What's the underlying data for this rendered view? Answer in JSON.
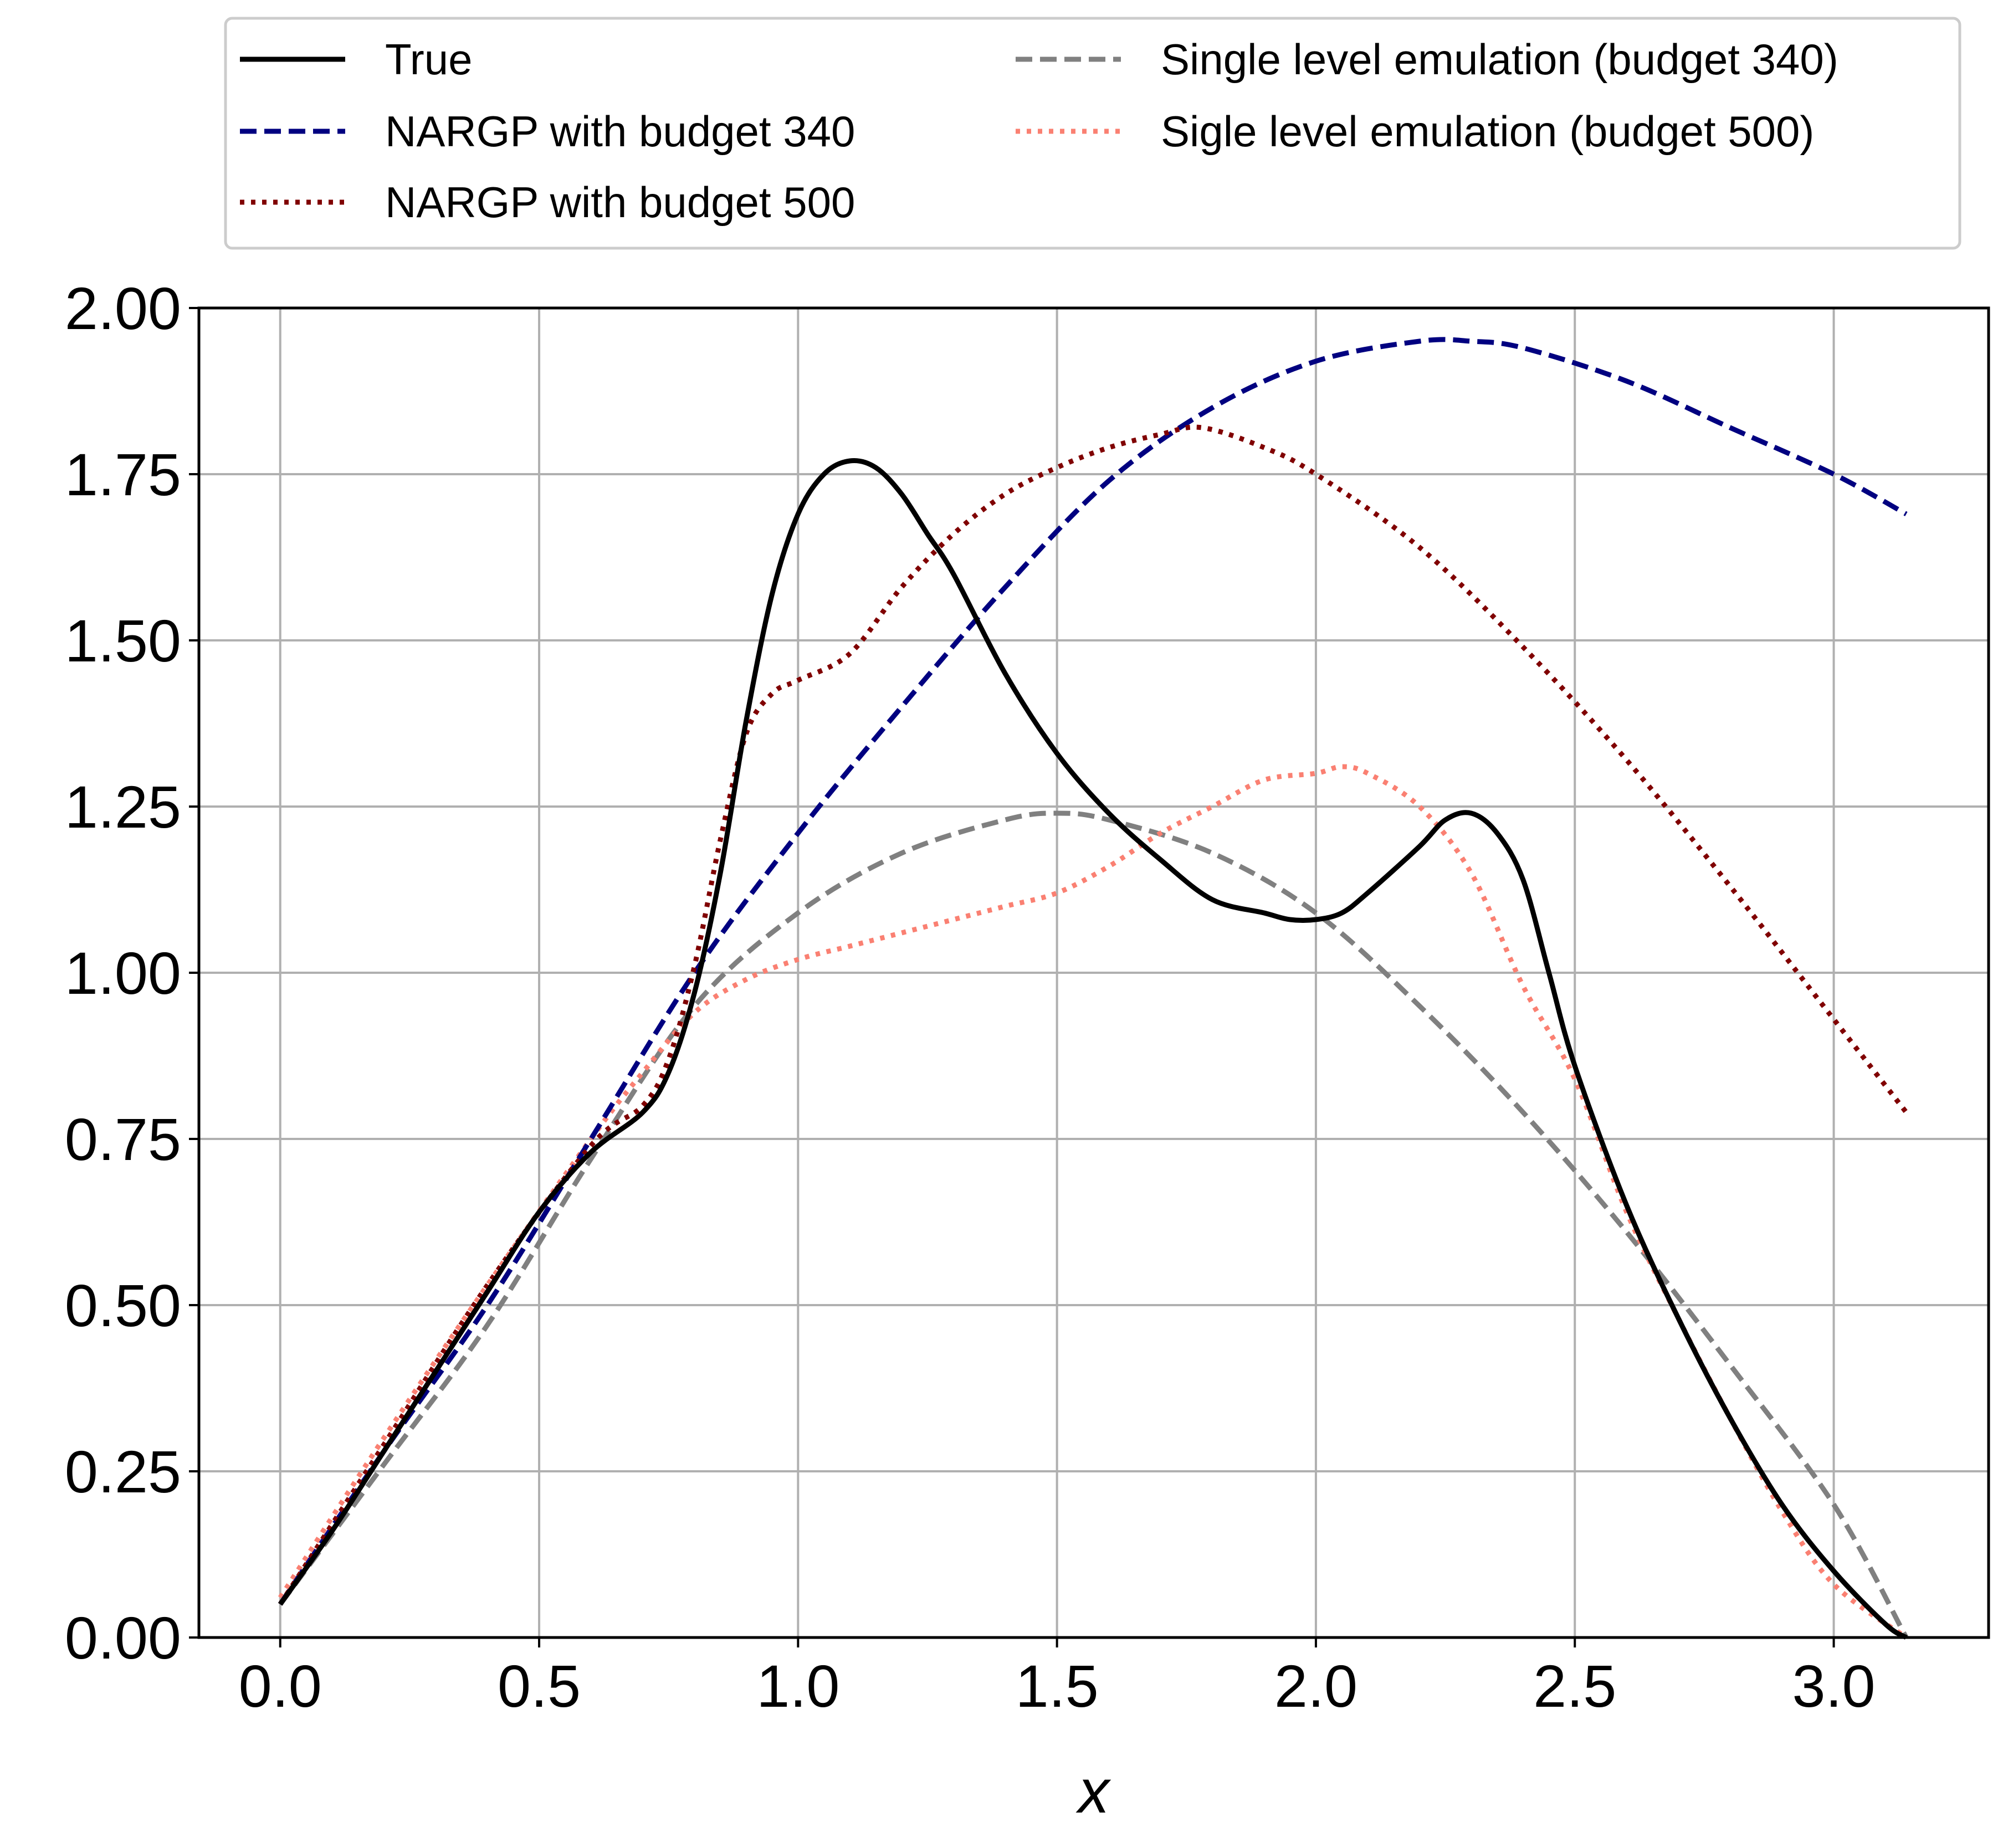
{
  "chart_data": {
    "type": "line",
    "title": "",
    "xlabel": "x",
    "ylabel": "",
    "xlim": [
      -0.157,
      3.299
    ],
    "ylim": [
      0,
      2
    ],
    "grid": true,
    "legend_position": "top (above plot), two columns",
    "xticks": [
      "0.0",
      "0.5",
      "1.0",
      "1.5",
      "2.0",
      "2.5",
      "3.0"
    ],
    "xtick_values": [
      0,
      0.5,
      1.0,
      1.5,
      2.0,
      2.5,
      3.0
    ],
    "yticks": [
      "0.00",
      "0.25",
      "0.50",
      "0.75",
      "1.00",
      "1.25",
      "1.50",
      "1.75",
      "2.00"
    ],
    "ytick_values": [
      0,
      0.25,
      0.5,
      0.75,
      1.0,
      1.25,
      1.5,
      1.75,
      2.0
    ],
    "series": [
      {
        "name": "True",
        "color": "#000000",
        "style": "solid",
        "x": [
          0,
          0.1,
          0.2,
          0.3,
          0.4,
          0.5,
          0.6,
          0.7,
          0.75,
          0.8,
          0.85,
          0.9,
          0.95,
          1.0,
          1.05,
          1.1,
          1.15,
          1.2,
          1.25,
          1.3,
          1.4,
          1.5,
          1.6,
          1.7,
          1.8,
          1.9,
          1.95,
          2.0,
          2.05,
          2.1,
          2.2,
          2.25,
          2.3,
          2.35,
          2.4,
          2.45,
          2.5,
          2.6,
          2.7,
          2.8,
          2.9,
          3.0,
          3.1,
          3.14
        ],
        "y": [
          0.05,
          0.16,
          0.28,
          0.4,
          0.52,
          0.64,
          0.73,
          0.79,
          0.85,
          0.97,
          1.15,
          1.38,
          1.57,
          1.69,
          1.75,
          1.77,
          1.76,
          1.72,
          1.66,
          1.6,
          1.45,
          1.33,
          1.24,
          1.17,
          1.11,
          1.09,
          1.08,
          1.08,
          1.09,
          1.12,
          1.19,
          1.23,
          1.24,
          1.21,
          1.14,
          1.0,
          0.86,
          0.65,
          0.48,
          0.33,
          0.2,
          0.1,
          0.02,
          0.0
        ]
      },
      {
        "name": "NARGP with budget 340",
        "color": "#000080",
        "style": "dashed",
        "x": [
          0,
          0.2,
          0.4,
          0.6,
          0.8,
          1.0,
          1.2,
          1.4,
          1.6,
          1.8,
          2.0,
          2.2,
          2.3,
          2.4,
          2.6,
          2.8,
          3.0,
          3.14
        ],
        "y": [
          0.05,
          0.28,
          0.5,
          0.75,
          1.0,
          1.21,
          1.4,
          1.58,
          1.74,
          1.85,
          1.92,
          1.95,
          1.95,
          1.94,
          1.89,
          1.82,
          1.75,
          1.69
        ]
      },
      {
        "name": "NARGP with budget 500",
        "color": "#800000",
        "style": "dotted",
        "x": [
          0,
          0.2,
          0.4,
          0.6,
          0.7,
          0.75,
          0.8,
          0.85,
          0.9,
          0.95,
          1.0,
          1.1,
          1.2,
          1.3,
          1.4,
          1.5,
          1.6,
          1.7,
          1.78,
          1.9,
          2.0,
          2.2,
          2.4,
          2.6,
          2.8,
          3.0,
          3.14
        ],
        "y": [
          0.05,
          0.29,
          0.53,
          0.74,
          0.8,
          0.87,
          1.01,
          1.2,
          1.36,
          1.42,
          1.44,
          1.48,
          1.58,
          1.66,
          1.72,
          1.76,
          1.79,
          1.81,
          1.82,
          1.79,
          1.75,
          1.64,
          1.49,
          1.32,
          1.13,
          0.93,
          0.79
        ]
      },
      {
        "name": "Single level emulation (budget 340)",
        "color": "#808080",
        "style": "dashed",
        "x": [
          0,
          0.2,
          0.4,
          0.6,
          0.8,
          1.0,
          1.2,
          1.4,
          1.5,
          1.6,
          1.8,
          2.0,
          2.2,
          2.4,
          2.6,
          2.8,
          3.0,
          3.14
        ],
        "y": [
          0.05,
          0.26,
          0.47,
          0.72,
          0.95,
          1.09,
          1.18,
          1.23,
          1.24,
          1.23,
          1.18,
          1.09,
          0.95,
          0.79,
          0.61,
          0.41,
          0.2,
          0.0
        ]
      },
      {
        "name": "Sigle level emulation (budget 500)",
        "color": "#fa8072",
        "style": "dotted",
        "x": [
          0,
          0.2,
          0.4,
          0.6,
          0.7,
          0.8,
          0.9,
          1.0,
          1.1,
          1.2,
          1.3,
          1.4,
          1.5,
          1.6,
          1.7,
          1.8,
          1.9,
          2.0,
          2.05,
          2.1,
          2.2,
          2.3,
          2.4,
          2.5,
          2.6,
          2.7,
          2.8,
          2.9,
          3.0,
          3.14
        ],
        "y": [
          0.06,
          0.3,
          0.53,
          0.75,
          0.85,
          0.94,
          0.99,
          1.02,
          1.04,
          1.06,
          1.08,
          1.1,
          1.12,
          1.16,
          1.21,
          1.25,
          1.29,
          1.3,
          1.31,
          1.3,
          1.25,
          1.15,
          0.98,
          0.84,
          0.64,
          0.48,
          0.33,
          0.19,
          0.08,
          0.0
        ]
      }
    ]
  }
}
